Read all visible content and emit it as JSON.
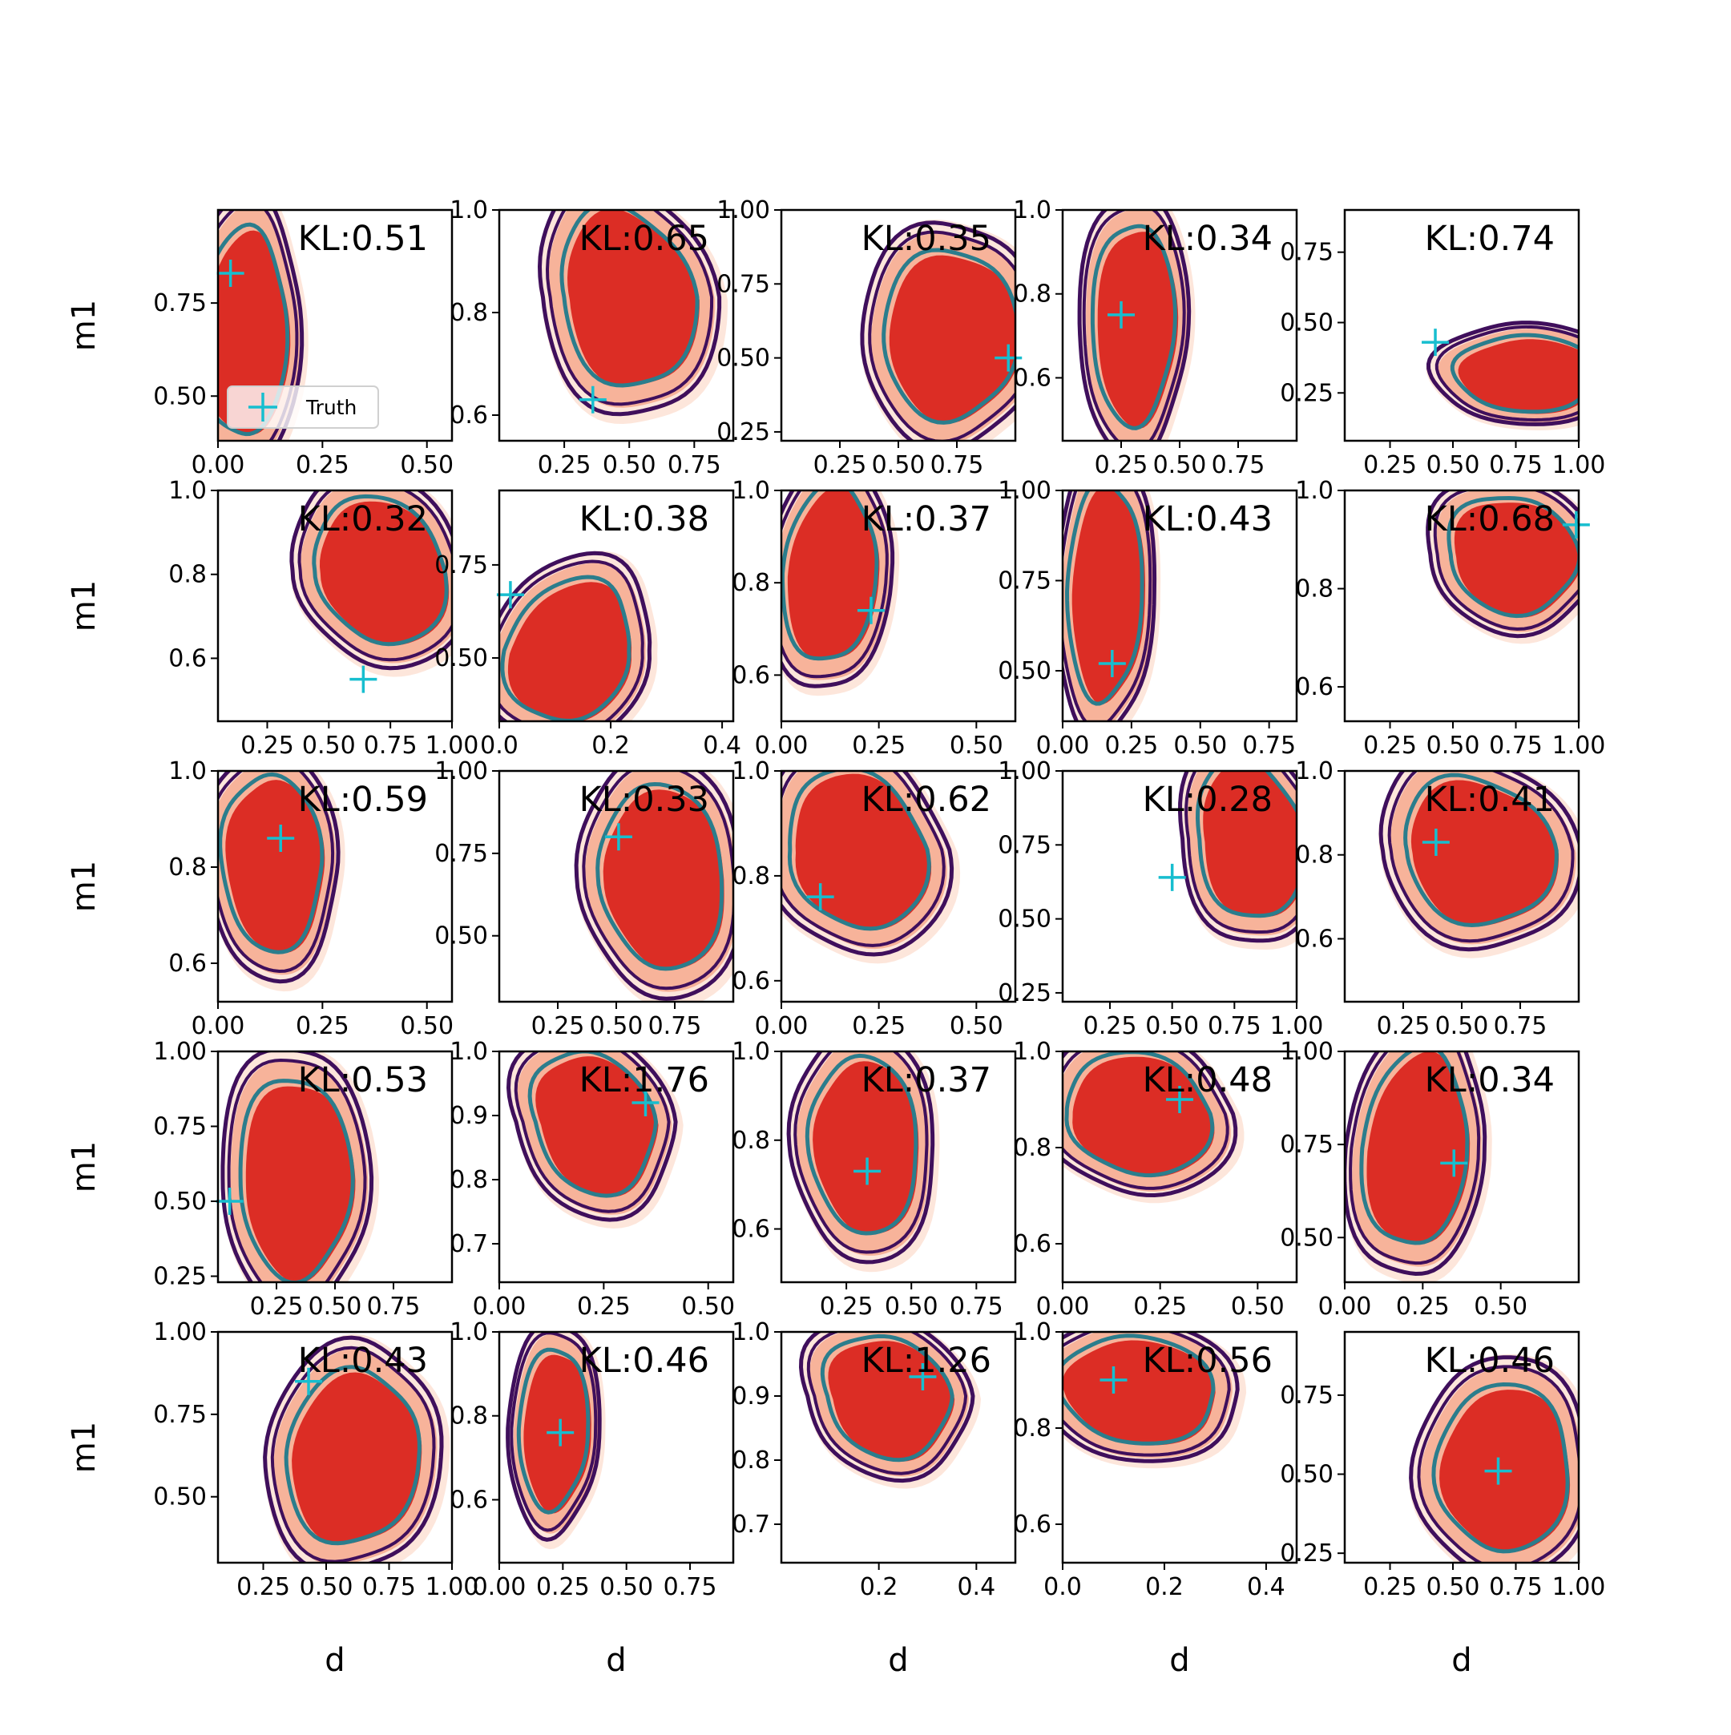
{
  "figure": {
    "xlabel": "d",
    "ylabel": "m1"
  },
  "legend": {
    "label": "Truth",
    "marker_color": "#17becf"
  },
  "colors": {
    "contour_outer": "#3f0f5c",
    "contour_inner": "#2b7d8c",
    "fill_light": "#fde0d2",
    "fill_mid": "#f6a98e",
    "fill_dark": "#dc2d25",
    "truth": "#17becf"
  },
  "chart_data": [
    {
      "type": "contour",
      "kl": "KL:0.51",
      "xlim": [
        0,
        0.56
      ],
      "ylim": [
        0.38,
        1.0
      ],
      "xticks": [
        "0.00",
        "0.25",
        "0.50"
      ],
      "yticks": [
        "0.50",
        "0.75"
      ],
      "center": [
        0.06,
        0.67
      ],
      "spread": [
        0.13,
        0.35
      ],
      "tilt": -0.15,
      "truth": [
        0.03,
        0.83
      ]
    },
    {
      "type": "contour",
      "kl": "KL:0.65",
      "xlim": [
        0,
        0.9
      ],
      "ylim": [
        0.55,
        1.0
      ],
      "xticks": [
        "0.25",
        "0.50",
        "0.75"
      ],
      "yticks": [
        "0.6",
        "0.8",
        "1.0"
      ],
      "center": [
        0.5,
        0.83
      ],
      "spread": [
        0.32,
        0.22
      ],
      "tilt": 0.55,
      "truth": [
        0.36,
        0.63
      ]
    },
    {
      "type": "contour",
      "kl": "KL:0.35",
      "xlim": [
        0,
        1.0
      ],
      "ylim": [
        0.22,
        1.0
      ],
      "xticks": [
        "0.25",
        "0.50",
        "0.75"
      ],
      "yticks": [
        "0.25",
        "0.50",
        "0.75",
        "1.00"
      ],
      "center": [
        0.72,
        0.58
      ],
      "spread": [
        0.36,
        0.36
      ],
      "tilt": 0.0,
      "truth": [
        0.97,
        0.5
      ]
    },
    {
      "type": "contour",
      "kl": "KL:0.34",
      "xlim": [
        0,
        1.0
      ],
      "ylim": [
        0.45,
        1.0
      ],
      "xticks": [
        "0.25",
        "0.50",
        "0.75"
      ],
      "yticks": [
        "0.6",
        "0.8",
        "1.0"
      ],
      "center": [
        0.3,
        0.73
      ],
      "spread": [
        0.22,
        0.3
      ],
      "tilt": -0.1,
      "truth": [
        0.25,
        0.75
      ]
    },
    {
      "type": "contour",
      "kl": "KL:0.74",
      "xlim": [
        0.07,
        1.0
      ],
      "ylim": [
        0.08,
        0.9
      ],
      "xticks": [
        "0.25",
        "0.50",
        "0.75",
        "1.00"
      ],
      "yticks": [
        "0.25",
        "0.50",
        "0.75"
      ],
      "center": [
        0.79,
        0.32
      ],
      "spread": [
        0.35,
        0.17
      ],
      "tilt": 0.1,
      "truth": [
        0.43,
        0.43
      ]
    },
    {
      "type": "contour",
      "kl": "KL:0.32",
      "xlim": [
        0.05,
        1.0
      ],
      "ylim": [
        0.45,
        1.0
      ],
      "xticks": [
        "0.25",
        "0.50",
        "0.75",
        "1.00"
      ],
      "yticks": [
        "0.6",
        "0.8",
        "1.0"
      ],
      "center": [
        0.72,
        0.81
      ],
      "spread": [
        0.33,
        0.22
      ],
      "tilt": 0.6,
      "truth": [
        0.64,
        0.55
      ]
    },
    {
      "type": "contour",
      "kl": "KL:0.38",
      "xlim": [
        0,
        0.42
      ],
      "ylim": [
        0.33,
        0.95
      ],
      "xticks": [
        "0.0",
        "0.2",
        "0.4"
      ],
      "yticks": [
        "0.50",
        "0.75"
      ],
      "center": [
        0.12,
        0.52
      ],
      "spread": [
        0.14,
        0.24
      ],
      "tilt": -0.55,
      "truth": [
        0.02,
        0.67
      ]
    },
    {
      "type": "contour",
      "kl": "KL:0.37",
      "xlim": [
        0,
        0.6
      ],
      "ylim": [
        0.5,
        1.0
      ],
      "xticks": [
        "0.00",
        "0.25",
        "0.50"
      ],
      "yticks": [
        "0.6",
        "0.8",
        "1.0"
      ],
      "center": [
        0.12,
        0.82
      ],
      "spread": [
        0.15,
        0.24
      ],
      "tilt": -0.35,
      "truth": [
        0.23,
        0.74
      ]
    },
    {
      "type": "contour",
      "kl": "KL:0.43",
      "xlim": [
        0,
        0.85
      ],
      "ylim": [
        0.36,
        1.0
      ],
      "xticks": [
        "0.00",
        "0.25",
        "0.50",
        "0.75"
      ],
      "yticks": [
        "0.50",
        "0.75",
        "1.00"
      ],
      "center": [
        0.15,
        0.72
      ],
      "spread": [
        0.17,
        0.38
      ],
      "tilt": -0.2,
      "truth": [
        0.18,
        0.52
      ]
    },
    {
      "type": "contour",
      "kl": "KL:0.68",
      "xlim": [
        0.07,
        1.0
      ],
      "ylim": [
        0.53,
        1.0
      ],
      "xticks": [
        "0.25",
        "0.50",
        "0.75",
        "1.00"
      ],
      "yticks": [
        "0.6",
        "0.8",
        "1.0"
      ],
      "center": [
        0.74,
        0.87
      ],
      "spread": [
        0.32,
        0.15
      ],
      "tilt": 0.35,
      "truth": [
        0.99,
        0.93
      ]
    },
    {
      "type": "contour",
      "kl": "KL:0.59",
      "xlim": [
        0,
        0.56
      ],
      "ylim": [
        0.52,
        1.0
      ],
      "xticks": [
        "0.00",
        "0.25",
        "0.50"
      ],
      "yticks": [
        "0.6",
        "0.8",
        "1.0"
      ],
      "center": [
        0.13,
        0.81
      ],
      "spread": [
        0.15,
        0.23
      ],
      "tilt": 0.2,
      "truth": [
        0.15,
        0.86
      ]
    },
    {
      "type": "contour",
      "kl": "KL:0.33",
      "xlim": [
        0,
        1.0
      ],
      "ylim": [
        0.3,
        1.0
      ],
      "xticks": [
        "0.25",
        "0.50",
        "0.75"
      ],
      "yticks": [
        "0.50",
        "0.75",
        "1.00"
      ],
      "center": [
        0.7,
        0.68
      ],
      "spread": [
        0.33,
        0.35
      ],
      "tilt": 0.3,
      "truth": [
        0.51,
        0.8
      ]
    },
    {
      "type": "contour",
      "kl": "KL:0.62",
      "xlim": [
        0,
        0.6
      ],
      "ylim": [
        0.56,
        1.0
      ],
      "xticks": [
        "0.00",
        "0.25",
        "0.50"
      ],
      "yticks": [
        "0.6",
        "0.8",
        "1.0"
      ],
      "center": [
        0.2,
        0.85
      ],
      "spread": [
        0.22,
        0.19
      ],
      "tilt": 0.55,
      "truth": [
        0.1,
        0.76
      ]
    },
    {
      "type": "contour",
      "kl": "KL:0.28",
      "xlim": [
        0.06,
        1.0
      ],
      "ylim": [
        0.22,
        1.0
      ],
      "xticks": [
        "0.25",
        "0.50",
        "0.75",
        "1.00"
      ],
      "yticks": [
        "0.25",
        "0.50",
        "0.75",
        "1.00"
      ],
      "center": [
        0.82,
        0.77
      ],
      "spread": [
        0.27,
        0.34
      ],
      "tilt": 0.55,
      "truth": [
        0.5,
        0.64
      ]
    },
    {
      "type": "contour",
      "kl": "KL:0.41",
      "xlim": [
        0,
        1.0
      ],
      "ylim": [
        0.45,
        1.0
      ],
      "xticks": [
        "0.25",
        "0.50",
        "0.75"
      ],
      "yticks": [
        "0.6",
        "0.8",
        "1.0"
      ],
      "center": [
        0.58,
        0.81
      ],
      "spread": [
        0.4,
        0.22
      ],
      "tilt": 0.45,
      "truth": [
        0.39,
        0.83
      ]
    },
    {
      "type": "contour",
      "kl": "KL:0.53",
      "xlim": [
        0,
        1.0
      ],
      "ylim": [
        0.23,
        1.0
      ],
      "xticks": [
        "0.25",
        "0.50",
        "0.75"
      ],
      "yticks": [
        "0.25",
        "0.50",
        "0.75",
        "1.00"
      ],
      "center": [
        0.33,
        0.58
      ],
      "spread": [
        0.3,
        0.42
      ],
      "tilt": 0.1,
      "truth": [
        0.05,
        0.5
      ]
    },
    {
      "type": "contour",
      "kl": "KL:1.76",
      "xlim": [
        0,
        0.56
      ],
      "ylim": [
        0.64,
        1.0
      ],
      "xticks": [
        "0.00",
        "0.25",
        "0.50"
      ],
      "yticks": [
        "0.7",
        "0.8",
        "0.9",
        "1.0"
      ],
      "center": [
        0.23,
        0.89
      ],
      "spread": [
        0.18,
        0.14
      ],
      "tilt": 0.65,
      "truth": [
        0.35,
        0.92
      ]
    },
    {
      "type": "contour",
      "kl": "KL:0.37",
      "xlim": [
        0,
        0.9
      ],
      "ylim": [
        0.48,
        1.0
      ],
      "xticks": [
        "0.25",
        "0.50",
        "0.75"
      ],
      "yticks": [
        "0.6",
        "0.8",
        "1.0"
      ],
      "center": [
        0.32,
        0.79
      ],
      "spread": [
        0.26,
        0.25
      ],
      "tilt": 0.2,
      "truth": [
        0.33,
        0.73
      ]
    },
    {
      "type": "contour",
      "kl": "KL:0.48",
      "xlim": [
        0,
        0.6
      ],
      "ylim": [
        0.52,
        1.0
      ],
      "xticks": [
        "0.00",
        "0.25",
        "0.50"
      ],
      "yticks": [
        "0.6",
        "0.8",
        "1.0"
      ],
      "center": [
        0.2,
        0.87
      ],
      "spread": [
        0.23,
        0.16
      ],
      "tilt": 0.45,
      "truth": [
        0.3,
        0.9
      ]
    },
    {
      "type": "contour",
      "kl": "KL:0.34",
      "xlim": [
        0,
        0.75
      ],
      "ylim": [
        0.38,
        1.0
      ],
      "xticks": [
        "0.00",
        "0.25",
        "0.50"
      ],
      "yticks": [
        "0.50",
        "0.75",
        "1.00"
      ],
      "center": [
        0.22,
        0.74
      ],
      "spread": [
        0.21,
        0.33
      ],
      "tilt": -0.4,
      "truth": [
        0.35,
        0.7
      ]
    },
    {
      "type": "contour",
      "kl": "KL:0.43",
      "xlim": [
        0.07,
        1.0
      ],
      "ylim": [
        0.3,
        1.0
      ],
      "xticks": [
        "0.25",
        "0.50",
        "0.75",
        "1.00"
      ],
      "yticks": [
        "0.50",
        "0.75",
        "1.00"
      ],
      "center": [
        0.6,
        0.62
      ],
      "spread": [
        0.33,
        0.33
      ],
      "tilt": -0.2,
      "truth": [
        0.43,
        0.85
      ]
    },
    {
      "type": "contour",
      "kl": "KL:0.46",
      "xlim": [
        0,
        0.92
      ],
      "ylim": [
        0.45,
        1.0
      ],
      "xticks": [
        "0.00",
        "0.25",
        "0.50",
        "0.75"
      ],
      "yticks": [
        "0.6",
        "0.8",
        "1.0"
      ],
      "center": [
        0.21,
        0.77
      ],
      "spread": [
        0.17,
        0.24
      ],
      "tilt": -0.25,
      "truth": [
        0.24,
        0.76
      ]
    },
    {
      "type": "contour",
      "kl": "KL:1.26",
      "xlim": [
        0,
        0.48
      ],
      "ylim": [
        0.64,
        1.0
      ],
      "xticks": [
        "0.2",
        "0.4"
      ],
      "yticks": [
        "0.7",
        "0.8",
        "0.9",
        "1.0"
      ],
      "center": [
        0.22,
        0.9
      ],
      "spread": [
        0.16,
        0.12
      ],
      "tilt": 0.55,
      "truth": [
        0.29,
        0.93
      ]
    },
    {
      "type": "contour",
      "kl": "KL:0.56",
      "xlim": [
        0,
        0.46
      ],
      "ylim": [
        0.52,
        1.0
      ],
      "xticks": [
        "0.0",
        "0.2",
        "0.4"
      ],
      "yticks": [
        "0.6",
        "0.8",
        "1.0"
      ],
      "center": [
        0.15,
        0.88
      ],
      "spread": [
        0.19,
        0.14
      ],
      "tilt": 0.35,
      "truth": [
        0.1,
        0.9
      ]
    },
    {
      "type": "contour",
      "kl": "KL:0.46",
      "xlim": [
        0.07,
        1.0
      ],
      "ylim": [
        0.22,
        0.95
      ],
      "xticks": [
        "0.25",
        "0.50",
        "0.75",
        "1.00"
      ],
      "yticks": [
        "0.25",
        "0.50",
        "0.75"
      ],
      "center": [
        0.7,
        0.52
      ],
      "spread": [
        0.33,
        0.33
      ],
      "tilt": 0.0,
      "truth": [
        0.68,
        0.51
      ]
    }
  ]
}
